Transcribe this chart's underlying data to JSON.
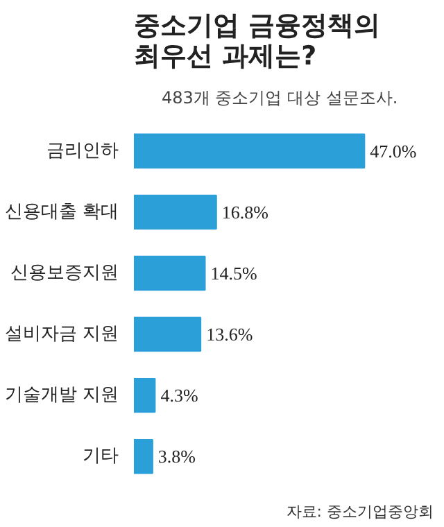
{
  "chart_data": {
    "type": "bar",
    "orientation": "horizontal",
    "title": "중소기업 금융정책의 최우선 과제는?",
    "subtitle": "483개 중소기업 대상 설문조사.",
    "categories": [
      "금리인하",
      "신용대출 확대",
      "신용보증지원",
      "설비자금 지원",
      "기술개발 지원",
      "기타"
    ],
    "values": [
      47.0,
      16.8,
      14.5,
      13.6,
      4.3,
      3.8
    ],
    "value_labels": [
      "47.0%",
      "16.8%",
      "14.5%",
      "13.6%",
      "4.3%",
      "3.8%"
    ],
    "color": "#2a9fd8",
    "annotations": [
      "자료: 중소기업중앙회"
    ]
  }
}
